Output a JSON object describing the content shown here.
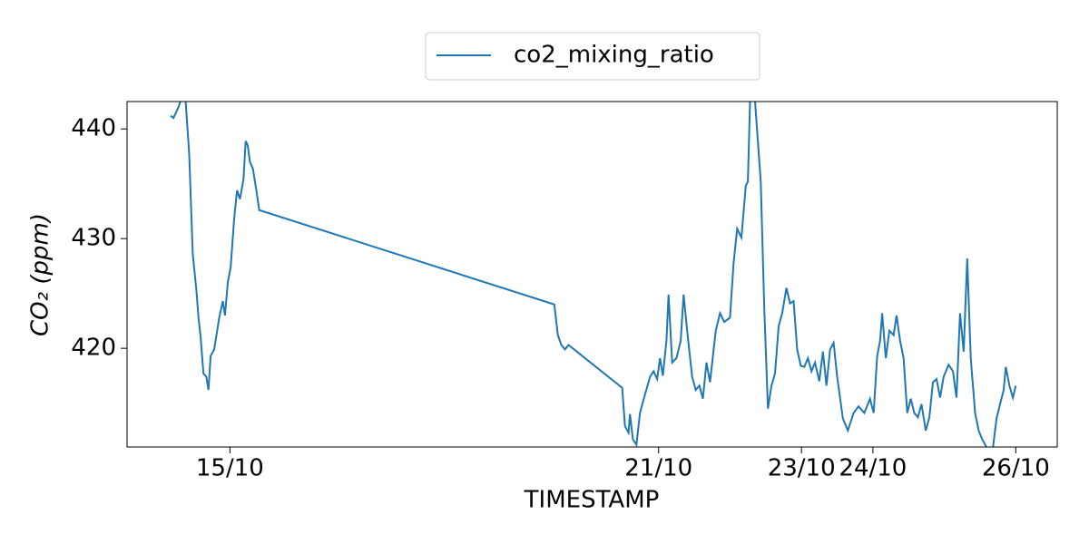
{
  "chart_data": {
    "type": "line",
    "x_label": "TIMESTAMP",
    "y_label": "CO₂ (ppm)",
    "xlim": [
      13.56,
      26.58
    ],
    "ylim": [
      411.0,
      442.5
    ],
    "xticks": [
      {
        "value": 15,
        "label": "15/10"
      },
      {
        "value": 21,
        "label": "21/10"
      },
      {
        "value": 23,
        "label": "23/10"
      },
      {
        "value": 24,
        "label": "24/10"
      },
      {
        "value": 26,
        "label": "26/10"
      }
    ],
    "yticks": [
      420,
      430,
      440
    ],
    "legend": "top",
    "series": [
      {
        "name": "co2_mixing_ratio",
        "color": "#1f77b4",
        "x": [
          14.17,
          14.21,
          14.28,
          14.33,
          14.38,
          14.43,
          14.48,
          14.53,
          14.56,
          14.59,
          14.63,
          14.67,
          14.7,
          14.73,
          14.78,
          14.85,
          14.9,
          14.93,
          14.97,
          15.01,
          15.06,
          15.1,
          15.14,
          15.19,
          15.22,
          15.25,
          15.28,
          15.32,
          15.37,
          15.41,
          19.54,
          19.59,
          19.64,
          19.69,
          19.74,
          20.49,
          20.53,
          20.58,
          20.6,
          20.64,
          20.69,
          20.74,
          20.81,
          20.88,
          20.93,
          20.98,
          21.02,
          21.06,
          21.11,
          21.14,
          21.19,
          21.25,
          21.31,
          21.35,
          21.4,
          21.47,
          21.52,
          21.57,
          21.62,
          21.67,
          21.72,
          21.8,
          21.86,
          21.92,
          22.0,
          22.05,
          22.1,
          22.16,
          22.22,
          22.25,
          22.28,
          22.3,
          22.35,
          22.43,
          22.48,
          22.53,
          22.58,
          22.63,
          22.68,
          22.73,
          22.79,
          22.84,
          22.89,
          22.94,
          22.99,
          23.04,
          23.09,
          23.14,
          23.19,
          23.25,
          23.3,
          23.35,
          23.4,
          23.45,
          23.5,
          23.58,
          23.65,
          23.73,
          23.8,
          23.88,
          23.96,
          24.01,
          24.06,
          24.1,
          24.13,
          24.18,
          24.23,
          24.29,
          24.33,
          24.38,
          24.43,
          24.48,
          24.53,
          24.58,
          24.63,
          24.68,
          24.74,
          24.79,
          24.84,
          24.89,
          24.94,
          24.99,
          25.06,
          25.12,
          25.17,
          25.22,
          25.27,
          25.32,
          25.37,
          25.43,
          25.48,
          25.53,
          25.58,
          25.63,
          25.68,
          25.73,
          25.78,
          25.83,
          25.86,
          25.91,
          25.96,
          26.0
        ],
        "values": [
          441.2,
          441.0,
          442.0,
          443.0,
          442.5,
          437.7,
          428.6,
          425.3,
          422.8,
          421.0,
          417.7,
          417.4,
          416.2,
          419.3,
          419.9,
          422.8,
          424.3,
          423.0,
          426.0,
          427.4,
          431.9,
          434.4,
          433.6,
          435.4,
          438.9,
          438.5,
          437.0,
          436.4,
          434.4,
          432.6,
          424.0,
          421.2,
          420.3,
          419.9,
          420.3,
          416.4,
          412.9,
          412.3,
          414.0,
          411.7,
          411.2,
          414.1,
          415.8,
          417.4,
          417.9,
          417.2,
          419.1,
          417.5,
          420.7,
          424.9,
          418.7,
          419.1,
          420.7,
          424.9,
          421.6,
          417.4,
          416.2,
          416.6,
          415.4,
          418.7,
          416.9,
          421.6,
          423.2,
          422.4,
          422.8,
          427.8,
          430.9,
          430.1,
          434.8,
          435.2,
          442.5,
          443.5,
          442.5,
          435.2,
          423.6,
          414.5,
          416.6,
          417.7,
          422.0,
          423.2,
          425.5,
          424.1,
          424.3,
          419.9,
          418.4,
          418.3,
          419.1,
          417.9,
          418.7,
          417.0,
          419.7,
          416.6,
          419.9,
          420.5,
          417.4,
          413.6,
          412.5,
          414.1,
          414.7,
          414.1,
          415.4,
          414.1,
          419.3,
          420.7,
          423.2,
          419.1,
          421.6,
          421.2,
          423.0,
          420.7,
          419.1,
          414.1,
          415.4,
          414.1,
          413.7,
          414.9,
          412.5,
          413.7,
          416.9,
          417.2,
          415.5,
          417.4,
          418.5,
          417.9,
          415.5,
          423.2,
          419.7,
          428.2,
          419.1,
          414.1,
          412.5,
          411.7,
          411.1,
          410.5,
          410.9,
          413.6,
          414.9,
          416.2,
          418.3,
          416.6,
          415.5,
          416.6
        ]
      }
    ]
  }
}
